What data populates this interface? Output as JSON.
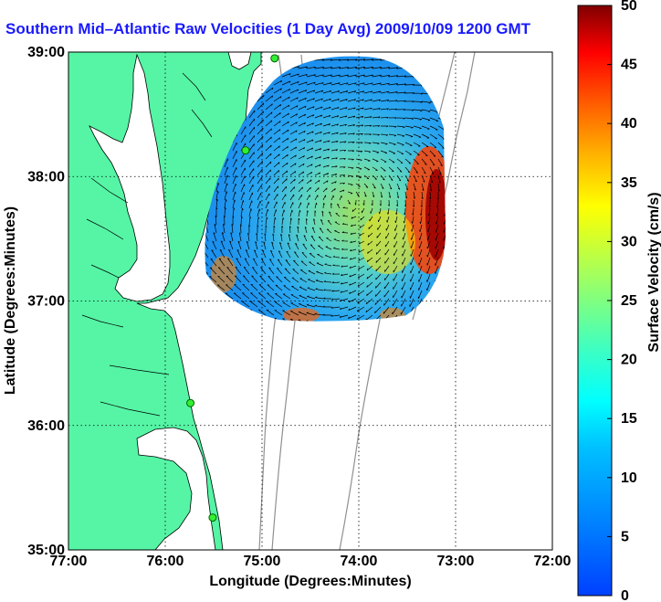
{
  "title": "Southern Mid–Atlantic Raw Velocities (1 Day Avg) 2009/10/09 1200 GMT",
  "map": {
    "xlabel": "Longitude (Degrees:Minutes)",
    "ylabel": "Latitude (Degrees:Minutes)",
    "x_ticks": [
      "77:00",
      "76:00",
      "75:00",
      "74:00",
      "73:00",
      "72:00"
    ],
    "y_ticks": [
      "39:00",
      "38:00",
      "37:00",
      "36:00",
      "35:00"
    ],
    "lon_range": [
      -77,
      -72
    ],
    "lat_range": [
      35,
      39
    ],
    "land_color": "#55f5a5",
    "grid": "dotted",
    "radar_sites": [
      {
        "lon": -74.87,
        "lat": 38.95
      },
      {
        "lon": -75.17,
        "lat": 38.21
      },
      {
        "lon": -75.74,
        "lat": 36.18
      },
      {
        "lon": -75.51,
        "lat": 35.26
      }
    ]
  },
  "colorbar": {
    "label": "Surface Velocity (cm/s)",
    "ticks": [
      "0",
      "5",
      "10",
      "15",
      "20",
      "25",
      "30",
      "35",
      "40",
      "45",
      "50"
    ],
    "min": 0,
    "max": 50,
    "colormap": "jet"
  }
}
